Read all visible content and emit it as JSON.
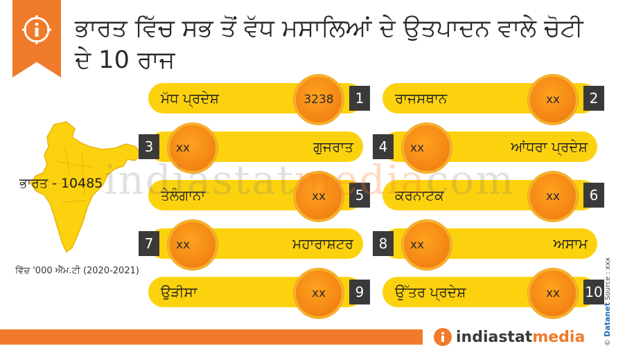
{
  "header": {
    "title": "ਭਾਰਤ ਵਿੱਚ ਸਭ ਤੋਂ ਵੱਧ ਮਸਾਲਿਆਂ ਦੇ ਉਤਪਾਦਨ ਵਾਲੇ ਚੋਟੀ ਦੇ 10 ਰਾਜ",
    "icon": "info-icon"
  },
  "map": {
    "label": "ਭਾਰਤ - 10485",
    "footnote": "ਵਿੱਚ '000 ਐੱਮ.ਟੀ (2020-2021)"
  },
  "chart_data": {
    "type": "table",
    "title": "ਭਾਰਤ ਵਿੱਚ ਸਭ ਤੋਂ ਵੱਧ ਮਸਾਲਿਆਂ ਦੇ ਉਤਪਾਦਨ ਵਾਲੇ ਚੋਟੀ ਦੇ 10 ਰਾਜ",
    "unit": "ਵਿੱਚ '000 ਐੱਮ.ਟੀ (2020-2021)",
    "total": {
      "label": "ਭਾਰਤ",
      "value": "10485"
    },
    "rows": [
      {
        "rank": "1",
        "state": "ਮੱਧ ਪ੍ਰਦੇਸ਼",
        "value": "3238"
      },
      {
        "rank": "2",
        "state": "ਰਾਜਸਥਾਨ",
        "value": "xx"
      },
      {
        "rank": "3",
        "state": "ਗੁਜਰਾਤ",
        "value": "xx"
      },
      {
        "rank": "4",
        "state": "ਆਂਧਰਾ ਪ੍ਰਦੇਸ਼",
        "value": "xx"
      },
      {
        "rank": "5",
        "state": "ਤੇਲੰਗਾਨਾ",
        "value": "xx"
      },
      {
        "rank": "6",
        "state": "ਕਰਨਾਟਕ",
        "value": "xx"
      },
      {
        "rank": "7",
        "state": "ਮਹਾਰਾਸ਼ਟਰ",
        "value": "xx"
      },
      {
        "rank": "8",
        "state": "ਅਸਾਮ",
        "value": "xx"
      },
      {
        "rank": "9",
        "state": "ਉੜੀਸਾ",
        "value": "xx"
      },
      {
        "rank": "10",
        "state": "ਉੱਤਰ ਪ੍ਰਦੇਸ਼",
        "value": "xx"
      }
    ]
  },
  "colors": {
    "accent": "#f07b2a",
    "pill": "#fcd20f",
    "circle": "#f58a16",
    "rank_box": "#3a3a3a"
  },
  "watermark": {
    "part1": "indiastat",
    "part2": "media",
    "part3": "com"
  },
  "footer": {
    "brand1": "indiastat",
    "brand2": "media",
    "credit_symbol": "©",
    "credit_brand": "Datanet",
    "source": "Source : xxx"
  }
}
